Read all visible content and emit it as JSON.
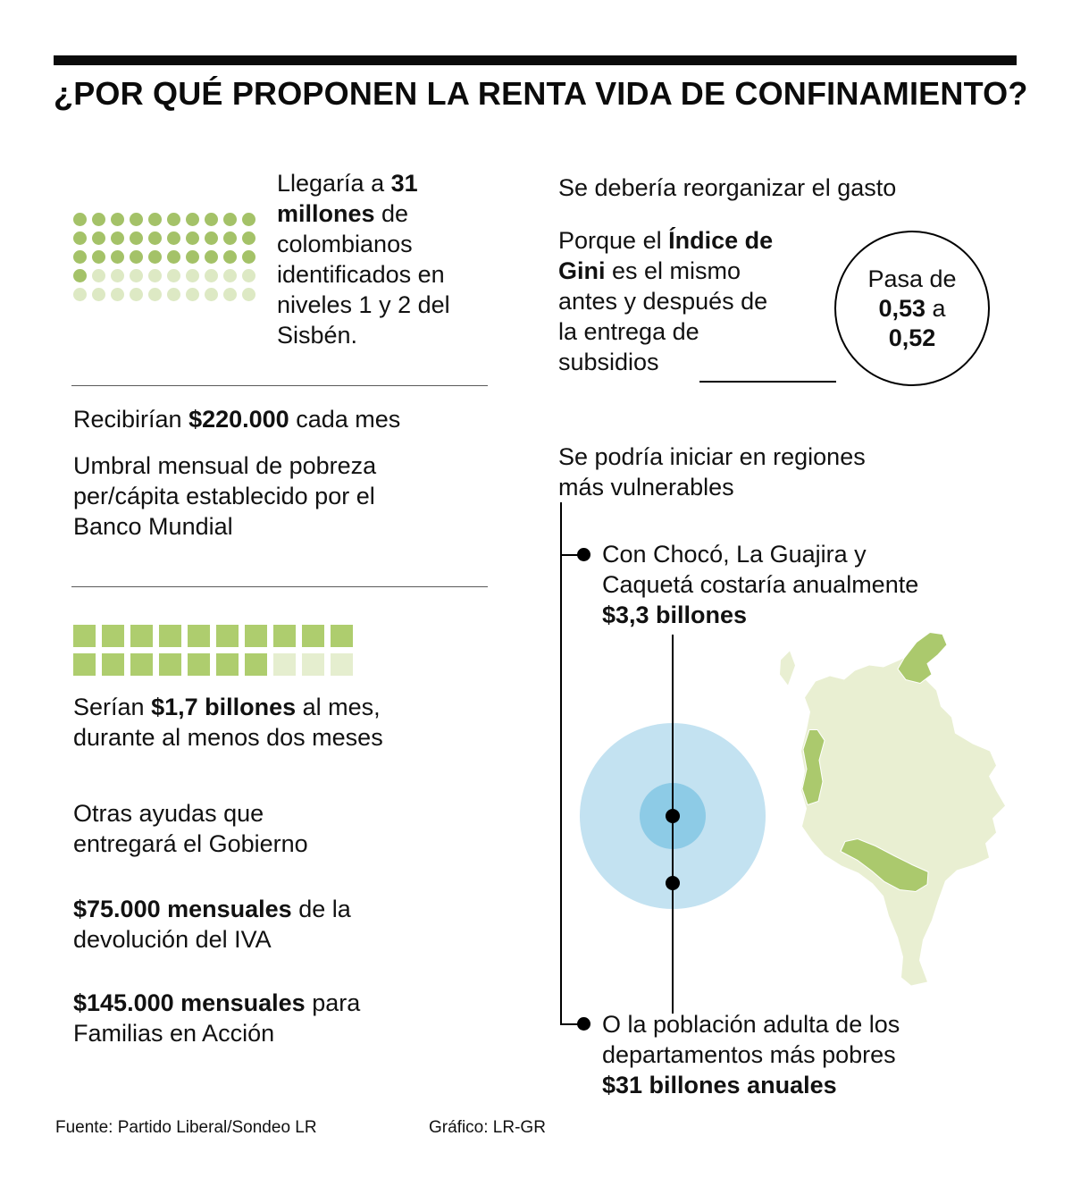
{
  "title": "¿POR QUÉ PROPONEN LA RENTA VIDA DE CONFINAMIENTO?",
  "colors": {
    "green_dot_filled": "#a4c268",
    "green_dot_empty": "#dde9c4",
    "green_square_filled": "#aecd6e",
    "green_square_empty": "#e5eecf",
    "blue_outer": "#c3e2f1",
    "blue_inner": "#8dcbe6",
    "map_base": "#e9efd2",
    "map_highlight": "#abc96d"
  },
  "left": {
    "beneficiaries": [
      {
        "t": "Llegaría a ",
        "b": false
      },
      {
        "t": "31\nmillones",
        "b": true
      },
      {
        "t": " de\ncolombianos\nidentificados en\nniveles 1 y 2 del\nSisbén.",
        "b": false
      }
    ],
    "monthly": [
      {
        "t": "Recibirían ",
        "b": false
      },
      {
        "t": "$220.000",
        "b": true
      },
      {
        "t": " cada mes",
        "b": false
      }
    ],
    "threshold": [
      {
        "t": "Umbral mensual de pobreza\nper/cápita establecido por el\nBanco Mundial",
        "b": false
      }
    ],
    "cost": [
      {
        "t": "Serían ",
        "b": false
      },
      {
        "t": "$1,7 billones",
        "b": true
      },
      {
        "t": " al mes,\ndurante al menos dos meses",
        "b": false
      }
    ],
    "other_aid_title": [
      {
        "t": "Otras ayudas que\nentregará el Gobierno",
        "b": false
      }
    ],
    "iva": [
      {
        "t": "$75.000 mensuales",
        "b": true
      },
      {
        "t": " de la\ndevolución del IVA",
        "b": false
      }
    ],
    "familias": [
      {
        "t": "$145.000 mensuales",
        "b": true
      },
      {
        "t": " para\nFamilias en Acción",
        "b": false
      }
    ]
  },
  "right": {
    "reorganize": [
      {
        "t": "Se debería reorganizar el gasto",
        "b": false
      }
    ],
    "gini": [
      {
        "t": "Porque el ",
        "b": false
      },
      {
        "t": "Índice de\nGini",
        "b": true
      },
      {
        "t": " es el mismo\nantes y después de\nla entrega de\nsubsidios",
        "b": false
      }
    ],
    "gini_circle": {
      "line1": [
        {
          "t": "Pasa de",
          "b": false
        }
      ],
      "line2": [
        {
          "t": "0,53",
          "b": true
        },
        {
          "t": " a",
          "b": false
        }
      ],
      "line3": [
        {
          "t": "0,52",
          "b": true
        }
      ]
    },
    "regions": [
      {
        "t": "Se podría iniciar en regiones\nmás vulnerables",
        "b": false
      }
    ],
    "bullet1": [
      {
        "t": "Con Chocó, La Guajira y\nCaquetá costaría anualmente\n",
        "b": false
      },
      {
        "t": "$3,3 billones",
        "b": true
      }
    ],
    "bullet2": [
      {
        "t": "O la población adulta de los\ndepartamentos más pobres\n",
        "b": false
      },
      {
        "t": "$31 billones anuales",
        "b": true
      }
    ]
  },
  "footer": {
    "source": "Fuente: Partido Liberal/Sondeo LR",
    "credit": "Gráfico: LR-GR"
  },
  "chart_data": [
    {
      "type": "pictogram",
      "shape": "dot",
      "rows": 5,
      "cols": 10,
      "total": 50,
      "filled": 31,
      "value": "31 millones",
      "label": "Llegaría a 31 millones de colombianos identificados en niveles 1 y 2 del Sisbén."
    },
    {
      "type": "pictogram",
      "shape": "square",
      "rows": 2,
      "cols": 10,
      "total": 20,
      "filled": 17,
      "value": "$1,7 billones al mes",
      "label": "Serían $1,7 billones al mes, durante al menos dos meses"
    },
    {
      "type": "map",
      "region": "Colombia",
      "highlighted_departments": [
        "La Guajira",
        "Chocó",
        "Caquetá"
      ],
      "annotations": [
        "Con Chocó, La Guajira y Caquetá costaría anualmente $3,3 billones",
        "O la población adulta de los departamentos más pobres $31 billones anuales"
      ]
    },
    {
      "type": "stat",
      "label": "Índice de Gini",
      "before": "0,53",
      "after": "0,52",
      "note": "Pasa de 0,53 a 0,52 — es el mismo antes y después de la entrega de subsidios"
    }
  ]
}
